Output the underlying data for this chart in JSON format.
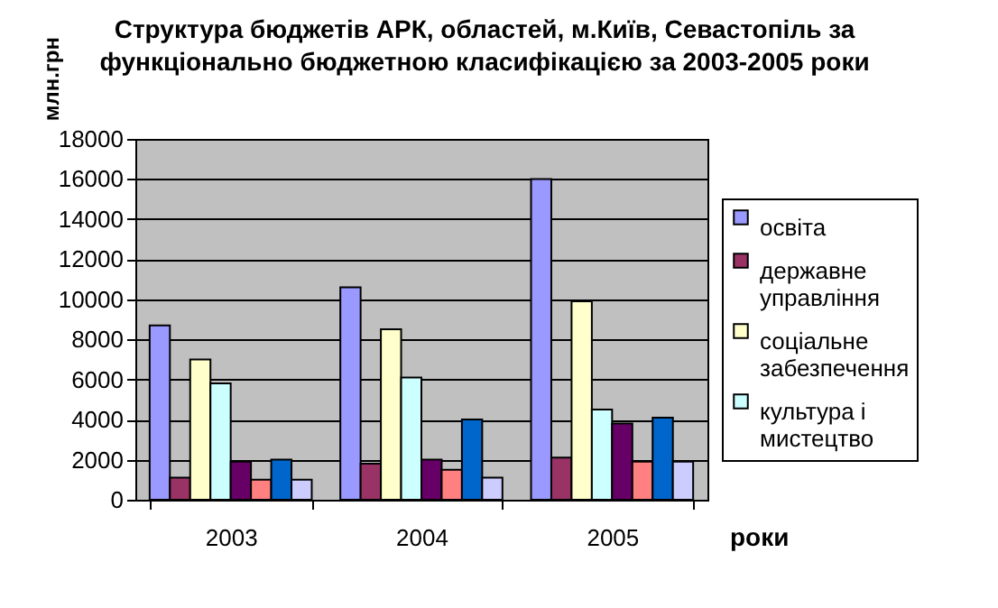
{
  "chart_data": {
    "type": "bar",
    "title": "Структура бюджетів АРК, областей, м.Київ, Севастопіль за функціонально бюджетною класифікацією за 2003-2005 роки",
    "xlabel": "роки",
    "ylabel": "млн.грн",
    "categories": [
      "2003",
      "2004",
      "2005"
    ],
    "series": [
      {
        "name": "освіта",
        "color": "#9999ff",
        "values": [
          8700,
          10600,
          16000
        ]
      },
      {
        "name": "державне управління",
        "color": "#993366",
        "values": [
          1100,
          1800,
          2100
        ]
      },
      {
        "name": "соціальне забезпечення",
        "color": "#ffffcc",
        "values": [
          7000,
          8500,
          9900
        ]
      },
      {
        "name": "культура і мистецтво",
        "color": "#ccffff",
        "values": [
          5800,
          6100,
          4500
        ]
      },
      {
        "color": "#660066",
        "values": [
          1900,
          2000,
          3800
        ]
      },
      {
        "color": "#ff8080",
        "values": [
          1000,
          1500,
          1900
        ]
      },
      {
        "color": "#0066cc",
        "values": [
          2000,
          4000,
          4100
        ]
      },
      {
        "color": "#ccccff",
        "values": [
          1000,
          1100,
          1900
        ]
      }
    ],
    "ylim": [
      0,
      18000
    ],
    "yticks": [
      0,
      2000,
      4000,
      6000,
      8000,
      10000,
      12000,
      14000,
      16000,
      18000
    ],
    "grid": "y",
    "legend": "right"
  }
}
